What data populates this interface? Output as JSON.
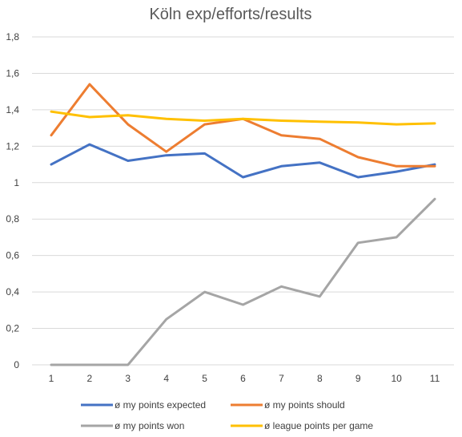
{
  "chart_data": {
    "type": "line",
    "title": "Köln exp/efforts/results",
    "x": [
      "1",
      "2",
      "3",
      "4",
      "5",
      "6",
      "7",
      "8",
      "9",
      "10",
      "11"
    ],
    "ylim": [
      0,
      1.8
    ],
    "yticks": [
      "0",
      "0,2",
      "0,4",
      "0,6",
      "0,8",
      "1",
      "1,2",
      "1,4",
      "1,6",
      "1,8"
    ],
    "grid": true,
    "legend_position": "bottom",
    "series": [
      {
        "name": "ø my points expected",
        "color": "#4472C4",
        "values": [
          1.1,
          1.21,
          1.12,
          1.15,
          1.16,
          1.03,
          1.09,
          1.11,
          1.03,
          1.06,
          1.1
        ]
      },
      {
        "name": "ø my points should",
        "color": "#ED7D31",
        "values": [
          1.26,
          1.54,
          1.32,
          1.17,
          1.32,
          1.35,
          1.26,
          1.24,
          1.14,
          1.09,
          1.09
        ]
      },
      {
        "name": "ø my points won",
        "color": "#A5A5A5",
        "values": [
          0,
          0,
          0,
          0.25,
          0.4,
          0.33,
          0.43,
          0.375,
          0.67,
          0.7,
          0.91
        ]
      },
      {
        "name": "ø league points per game",
        "color": "#FFC000",
        "values": [
          1.39,
          1.36,
          1.37,
          1.35,
          1.34,
          1.35,
          1.34,
          1.335,
          1.33,
          1.32,
          1.325
        ]
      }
    ]
  }
}
